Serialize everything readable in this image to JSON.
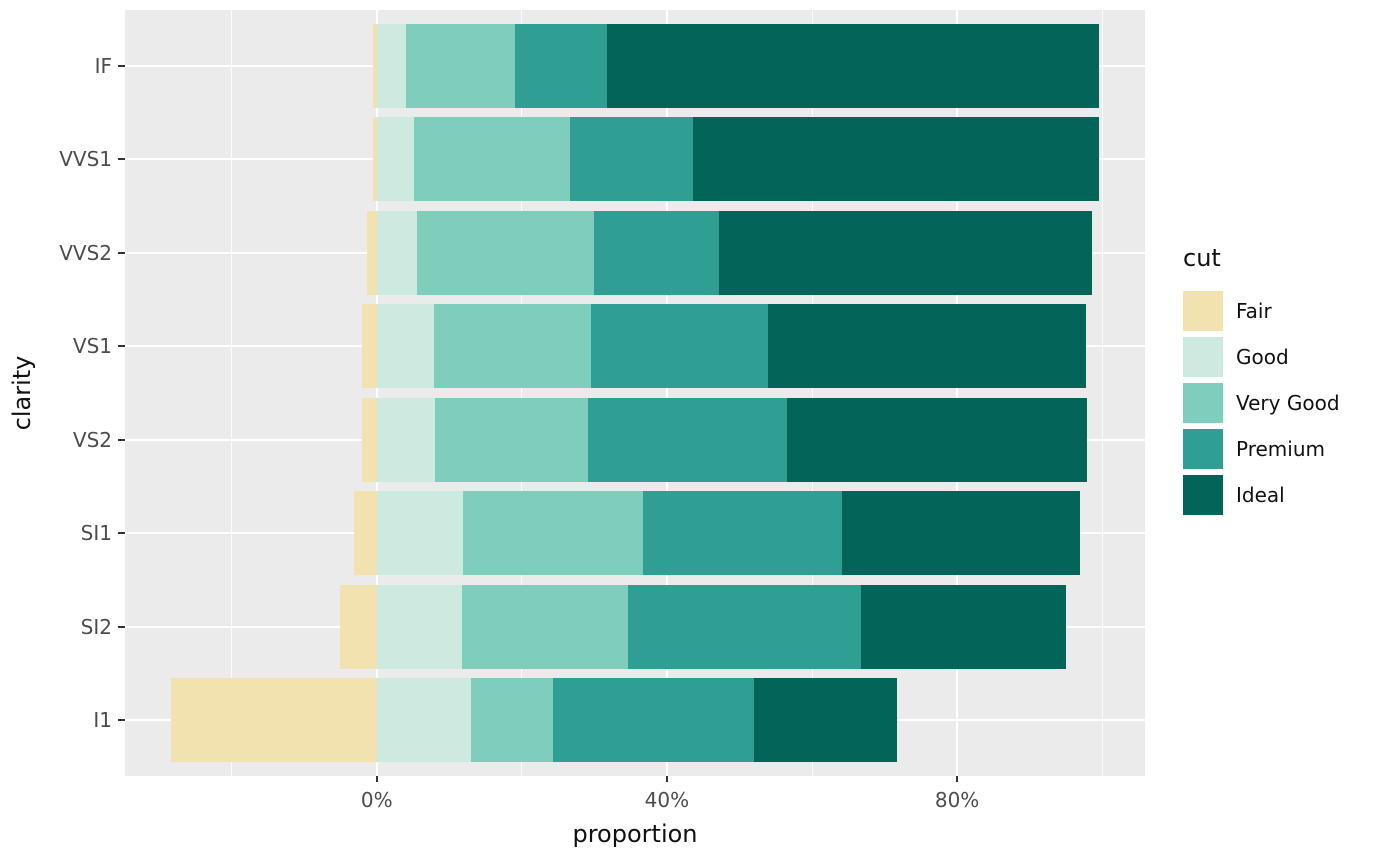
{
  "chart_data": {
    "type": "bar",
    "orientation": "horizontal",
    "stacked": true,
    "diverging_series": "Fair",
    "title": "",
    "xlabel": "proportion",
    "ylabel": "clarity",
    "legend_title": "cut",
    "legend_position": "right",
    "categories": [
      "IF",
      "VVS1",
      "VVS2",
      "VS1",
      "VS2",
      "SI1",
      "SI2",
      "I1"
    ],
    "series": [
      {
        "name": "Fair",
        "color": "#F2E2B0",
        "values": [
          0.5,
          0.5,
          1.4,
          2.1,
          2.1,
          3.1,
          5.1,
          28.3
        ]
      },
      {
        "name": "Good",
        "color": "#CDEAE1",
        "values": [
          4.0,
          5.1,
          5.6,
          7.9,
          8.0,
          11.9,
          11.8,
          13.0
        ]
      },
      {
        "name": "Very Good",
        "color": "#7FCEBC",
        "values": [
          15.0,
          21.6,
          24.4,
          21.7,
          21.1,
          24.8,
          22.8,
          11.3
        ]
      },
      {
        "name": "Premium",
        "color": "#2F9E93",
        "values": [
          12.8,
          16.9,
          17.2,
          24.3,
          27.4,
          27.4,
          32.1,
          27.7
        ]
      },
      {
        "name": "Ideal",
        "color": "#03645A",
        "values": [
          67.7,
          56.0,
          51.4,
          43.9,
          41.4,
          32.8,
          28.3,
          19.7
        ]
      }
    ],
    "x_ticks": [
      {
        "value": 0,
        "label": "0%"
      },
      {
        "value": 40,
        "label": "40%"
      },
      {
        "value": 80,
        "label": "80%"
      }
    ],
    "x_minor_gridlines": [
      -20,
      20,
      60,
      100
    ],
    "xlim": [
      -34.7,
      105.9
    ],
    "panel_background": "#EBEBEB",
    "gridline_color": "#FFFFFF",
    "tick_label_color": "#4D4D4D",
    "axis_title_color": "#111111"
  }
}
